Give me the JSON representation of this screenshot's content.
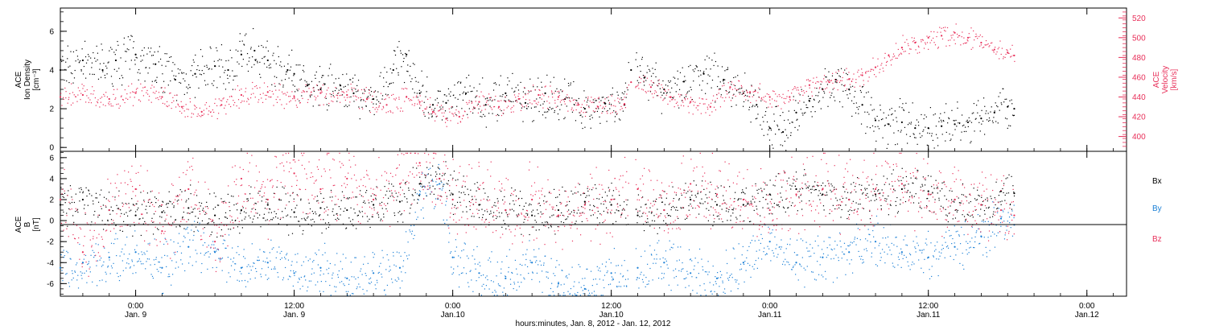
{
  "footer_xlabel": "hours:minutes, Jan.  8, 2012 - Jan. 12, 2012",
  "x_ticks": [
    {
      "hour": 24,
      "time": "0:00",
      "date": "Jan. 9"
    },
    {
      "hour": 36,
      "time": "12:00",
      "date": "Jan. 9"
    },
    {
      "hour": 48,
      "time": "0:00",
      "date": "Jan.10"
    },
    {
      "hour": 60,
      "time": "12:00",
      "date": "Jan.10"
    },
    {
      "hour": 72,
      "time": "0:00",
      "date": "Jan.11"
    },
    {
      "hour": 84,
      "time": "12:00",
      "date": "Jan.11"
    },
    {
      "hour": 96,
      "time": "0:00",
      "date": "Jan.12"
    }
  ],
  "colors": {
    "black": "#000000",
    "density": "#000000",
    "velocity": "#e8305a",
    "bx": "#000000",
    "by": "#1a7fd6",
    "bz": "#e8305a"
  },
  "chart_data": [
    {
      "type": "scatter",
      "panel": "top",
      "left_ylabel": [
        "ACE",
        "Ion Density",
        "[cm⁻³]"
      ],
      "right_ylabel": [
        "ACE",
        "Velocity",
        "[km/s]"
      ],
      "xlim": [
        18.3,
        99
      ],
      "ylim_left": [
        -0.2,
        7.2
      ],
      "ylim_right": [
        385,
        530
      ],
      "left_ticks": [
        0,
        2,
        4,
        6
      ],
      "right_ticks": [
        400,
        420,
        440,
        460,
        480,
        500,
        520
      ],
      "series": [
        {
          "axis": "left",
          "color": "#000000",
          "x": [
            18.3,
            20,
            21.5,
            22.5,
            24,
            25.5,
            27,
            28.5,
            30,
            31,
            32,
            33,
            34,
            35.5,
            36,
            37,
            38,
            39.5,
            40.5,
            42,
            43.5,
            44.5,
            45.5,
            46.5,
            47.5,
            49,
            50.5,
            52,
            53.5,
            55,
            56.5,
            58,
            59.5,
            61,
            61.5,
            62.5,
            64,
            65.5,
            67,
            68.5,
            70,
            71,
            72,
            73,
            74,
            75,
            76,
            77,
            78,
            79,
            80,
            81,
            82,
            83,
            84,
            85,
            86,
            87,
            88,
            89,
            90,
            90.5
          ],
          "y": [
            4.0,
            4.5,
            4.0,
            4.5,
            4.8,
            4.3,
            3.5,
            3.8,
            4.2,
            4.0,
            4.8,
            5.0,
            4.5,
            4.0,
            3.8,
            3.2,
            3.0,
            3.2,
            2.8,
            2.5,
            4.0,
            4.8,
            2.8,
            2.2,
            2.3,
            2.8,
            2.2,
            2.8,
            2.3,
            2.8,
            2.5,
            2.0,
            2.3,
            2.2,
            4.0,
            3.6,
            3.0,
            3.4,
            3.8,
            3.5,
            2.8,
            2.2,
            1.0,
            0.8,
            1.8,
            2.4,
            3.0,
            3.5,
            3.0,
            2.2,
            1.4,
            1.2,
            1.3,
            1.0,
            1.0,
            1.1,
            1.2,
            1.3,
            1.5,
            1.8,
            2.1,
            2.0
          ]
        },
        {
          "axis": "right",
          "color": "#e8305a",
          "x": [
            18.3,
            20,
            22,
            24,
            26,
            27.5,
            29,
            30.5,
            32,
            34,
            36,
            38,
            40,
            41.5,
            43,
            44.5,
            45.5,
            46.5,
            47.5,
            48.5,
            50,
            51.5,
            53,
            54.5,
            56,
            57.5,
            59,
            61,
            61.5,
            63,
            64.5,
            66,
            67.5,
            69,
            70.5,
            72,
            73.5,
            75,
            76.5,
            78,
            79,
            80,
            81,
            82,
            83,
            84,
            85,
            86,
            87,
            88,
            89,
            90,
            90.5
          ],
          "y": [
            440,
            442,
            438,
            444,
            440,
            430,
            425,
            432,
            442,
            445,
            440,
            444,
            442,
            438,
            432,
            440,
            435,
            425,
            418,
            420,
            435,
            430,
            438,
            442,
            440,
            432,
            430,
            433,
            455,
            450,
            440,
            435,
            430,
            450,
            445,
            440,
            440,
            452,
            455,
            458,
            462,
            470,
            482,
            490,
            495,
            500,
            502,
            505,
            500,
            495,
            488,
            485,
            482
          ]
        }
      ]
    },
    {
      "type": "scatter",
      "panel": "bottom",
      "left_ylabel": [
        "ACE",
        "B",
        "[nT]"
      ],
      "legend": [
        "Bx",
        "By",
        "Bz"
      ],
      "legend_position": "right",
      "xlim": [
        18.3,
        99
      ],
      "ylim": [
        -7.2,
        6.6
      ],
      "ticks": [
        -6,
        -4,
        -2,
        0,
        2,
        4,
        6
      ],
      "series": [
        {
          "name": "Bx",
          "color": "#000000",
          "x": [
            18.3,
            20,
            22,
            24,
            26,
            28,
            30,
            32,
            34,
            36,
            38,
            40,
            42,
            44,
            45.5,
            47,
            48,
            50,
            52,
            54,
            56,
            58,
            60,
            62,
            64,
            66,
            68,
            70,
            72,
            74,
            76,
            78,
            80,
            82,
            84,
            86,
            88,
            89.5,
            90.5
          ],
          "y": [
            1.5,
            2.0,
            1.0,
            0.5,
            0.8,
            1.2,
            0.5,
            1.0,
            1.5,
            0.8,
            1.2,
            1.0,
            1.5,
            1.8,
            3.5,
            4.0,
            2.5,
            1.5,
            1.0,
            0.5,
            1.0,
            1.8,
            1.5,
            0.5,
            1.0,
            2.0,
            1.5,
            1.5,
            2.5,
            3.0,
            2.5,
            2.0,
            2.5,
            3.0,
            2.8,
            2.0,
            1.5,
            2.8,
            2.6
          ]
        },
        {
          "name": "By",
          "color": "#1a7fd6",
          "x": [
            18.3,
            20,
            22,
            24,
            26,
            28,
            30,
            32,
            34,
            36,
            38,
            40,
            42,
            44,
            45.5,
            47,
            48,
            50,
            52,
            54,
            56,
            58,
            60,
            62,
            64,
            66,
            68,
            70,
            72,
            74,
            76,
            78,
            80,
            82,
            84,
            86,
            88,
            89.5,
            90.5
          ],
          "y": [
            -4.5,
            -4.0,
            -3.5,
            -3.0,
            -4.5,
            -2.5,
            -3.0,
            -4.5,
            -4.0,
            -5.0,
            -4.5,
            -5.5,
            -5.0,
            -4.5,
            2.5,
            3.5,
            -3.5,
            -5.0,
            -5.5,
            -4.0,
            -6.0,
            -6.5,
            -5.0,
            -4.5,
            -4.0,
            -5.0,
            -5.5,
            -4.0,
            -2.0,
            -4.0,
            -3.5,
            -3.0,
            -2.0,
            -3.0,
            -3.5,
            -2.5,
            -1.5,
            0.2,
            -0.4
          ]
        },
        {
          "name": "Bz",
          "color": "#e8305a",
          "x": [
            18.3,
            20,
            22,
            24,
            26,
            28,
            30,
            32,
            34,
            36,
            38,
            40,
            42,
            44,
            45.5,
            47,
            48,
            50,
            52,
            54,
            56,
            58,
            60,
            62,
            64,
            66,
            68,
            70,
            72,
            74,
            76,
            78,
            80,
            82,
            84,
            86,
            88,
            89.5,
            90.5
          ],
          "y": [
            2.0,
            -3.0,
            1.0,
            3.0,
            -1.0,
            3.0,
            -2.0,
            4.0,
            2.0,
            4.5,
            3.0,
            4.0,
            2.0,
            3.5,
            5.5,
            4.0,
            2.0,
            3.0,
            1.0,
            2.0,
            0.5,
            1.5,
            2.0,
            3.0,
            1.0,
            3.5,
            2.5,
            2.0,
            1.0,
            2.5,
            3.0,
            2.0,
            3.0,
            3.5,
            2.5,
            2.0,
            1.5,
            1.0,
            0.5
          ]
        }
      ]
    }
  ]
}
